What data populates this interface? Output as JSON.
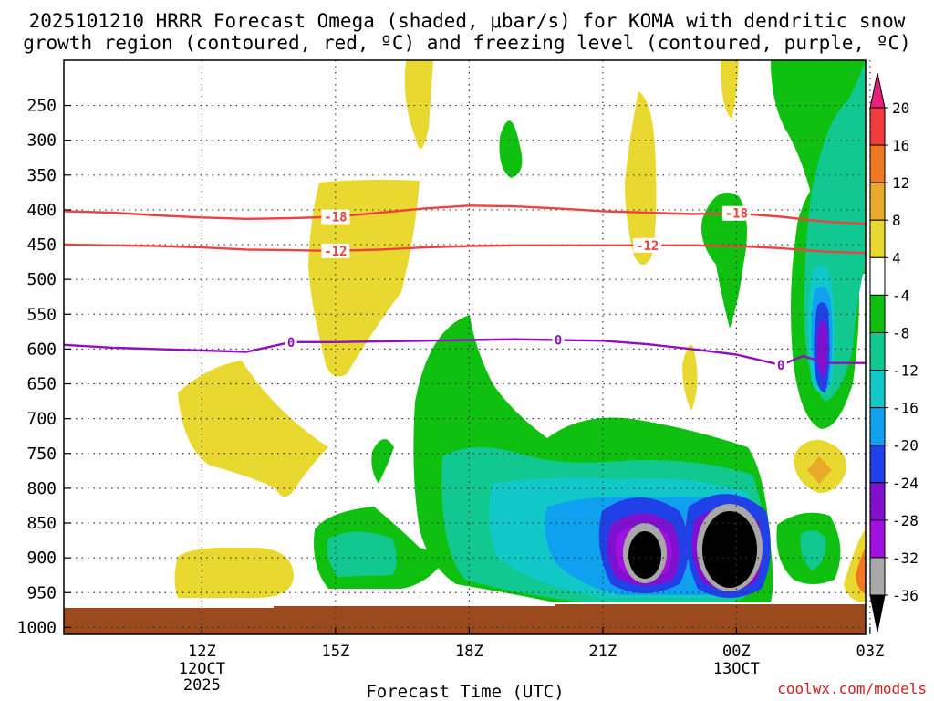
{
  "chart_data": {
    "type": "contour",
    "title_line1": "2025101210 HRRR Forecast Omega (shaded, μbar/s) for KOMA with dendritic snow",
    "title_line2": "growth region (contoured, red, ºC) and freezing level (contoured, purple, ºC)",
    "xlabel": "Forecast Time (UTC)",
    "ylabel": "",
    "credit": "coolwx.com/models",
    "x_range_hours_after_12z": [
      -3.1,
      14.9
    ],
    "y_range_mb": [
      185,
      1010
    ],
    "x_ticks": [
      {
        "hour": 0,
        "label": "12Z",
        "sub1": "12OCT",
        "sub2": "2025"
      },
      {
        "hour": 3,
        "label": "15Z",
        "sub1": "",
        "sub2": ""
      },
      {
        "hour": 6,
        "label": "18Z",
        "sub1": "",
        "sub2": ""
      },
      {
        "hour": 9,
        "label": "21Z",
        "sub1": "",
        "sub2": ""
      },
      {
        "hour": 12,
        "label": "00Z",
        "sub1": "13OCT",
        "sub2": ""
      },
      {
        "hour": 15,
        "label": "03Z",
        "sub1": "",
        "sub2": ""
      }
    ],
    "y_ticks": [
      250,
      300,
      350,
      400,
      450,
      500,
      550,
      600,
      650,
      700,
      750,
      800,
      850,
      900,
      950,
      1000
    ],
    "colorbar": {
      "labels": [
        "20",
        "16",
        "12",
        "8",
        "4",
        "-4",
        "-8",
        "-12",
        "-16",
        "-20",
        "-24",
        "-28",
        "-32",
        "-36"
      ],
      "colors": [
        "#e8207a",
        "#f03c3c",
        "#f07820",
        "#e8aa28",
        "#e8d830",
        "#ffffff",
        "#10c010",
        "#10c890",
        "#10c8c8",
        "#10a0f0",
        "#2040e8",
        "#8010d0",
        "#a010e0",
        "#a8a8a8",
        "#000000"
      ]
    },
    "contours": [
      {
        "name": "dgz-minus-18",
        "label": "-18",
        "color": "#f04040",
        "points": [
          [
            -3.1,
            402
          ],
          [
            -2,
            404
          ],
          [
            -1,
            408
          ],
          [
            0,
            411
          ],
          [
            1,
            413
          ],
          [
            2,
            412
          ],
          [
            3,
            410
          ],
          [
            4,
            404
          ],
          [
            5,
            398
          ],
          [
            6,
            394
          ],
          [
            7,
            395
          ],
          [
            8,
            398
          ],
          [
            9,
            402
          ],
          [
            10,
            404
          ],
          [
            11,
            406
          ],
          [
            12,
            405
          ],
          [
            13,
            410
          ],
          [
            14,
            417
          ],
          [
            14.9,
            420
          ]
        ],
        "label_hours": [
          3,
          12
        ]
      },
      {
        "name": "dgz-minus-12",
        "label": "-12",
        "color": "#f04040",
        "points": [
          [
            -3.1,
            450
          ],
          [
            -2,
            451
          ],
          [
            -1,
            452
          ],
          [
            0,
            454
          ],
          [
            1,
            457
          ],
          [
            2,
            458
          ],
          [
            3,
            459
          ],
          [
            4,
            457
          ],
          [
            5,
            454
          ],
          [
            6,
            452
          ],
          [
            7,
            451
          ],
          [
            8,
            451
          ],
          [
            9,
            451
          ],
          [
            10,
            451
          ],
          [
            11,
            451
          ],
          [
            12,
            452
          ],
          [
            13,
            455
          ],
          [
            14,
            460
          ],
          [
            14.9,
            462
          ]
        ],
        "label_hours": [
          3,
          10
        ]
      },
      {
        "name": "freezing-level-0",
        "label": "0",
        "color": "#9010c0",
        "points": [
          [
            -3.1,
            594
          ],
          [
            -2,
            598
          ],
          [
            -1,
            600
          ],
          [
            0,
            602
          ],
          [
            1,
            604
          ],
          [
            2,
            590
          ],
          [
            3,
            590
          ],
          [
            4,
            589
          ],
          [
            5,
            588
          ],
          [
            6,
            587
          ],
          [
            7,
            586
          ],
          [
            8,
            587
          ],
          [
            9,
            588
          ],
          [
            10,
            593
          ],
          [
            11,
            600
          ],
          [
            12,
            608
          ],
          [
            13,
            623
          ],
          [
            13.5,
            610
          ],
          [
            14,
            620
          ],
          [
            14.9,
            620
          ]
        ],
        "label_hours": [
          2,
          8,
          13
        ]
      }
    ],
    "shaded_regions": [
      {
        "name": "yellow-upper-16z",
        "omega": "4 to 8",
        "color": "#e8d830"
      },
      {
        "name": "yellow-left-13z",
        "omega": "4 to 8",
        "color": "#e8d830"
      },
      {
        "name": "green-lower-core",
        "omega": "-4 to -8",
        "color": "#10c010"
      },
      {
        "name": "black-core-00z",
        "omega": "< -36",
        "color": "#000000"
      },
      {
        "name": "blue-column-03z",
        "omega": "-20 to -28",
        "color": "#2040e8"
      }
    ]
  }
}
